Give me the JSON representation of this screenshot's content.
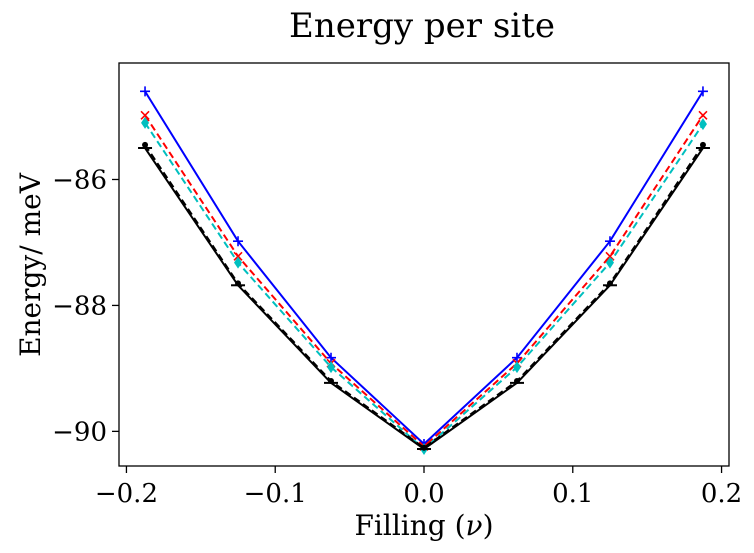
{
  "chart_data": {
    "type": "line",
    "title": "Energy per site",
    "xlabel": "Filling (",
    "xlabel_symbol": "ν",
    "xlabel_close": ")",
    "ylabel": "Energy/ meV",
    "xlim": [
      -0.205,
      0.205
    ],
    "ylim": [
      -90.55,
      -84.15
    ],
    "x_ticks": [
      -0.2,
      -0.1,
      0.0,
      0.1,
      0.2
    ],
    "x_tick_labels": [
      "−0.2",
      "−0.1",
      "0.0",
      "0.1",
      "0.2"
    ],
    "y_ticks": [
      -90,
      -88,
      -86
    ],
    "y_tick_labels": [
      "−90",
      "−88",
      "−86"
    ],
    "x": [
      -0.1875,
      -0.125,
      -0.0625,
      0.0,
      0.0625,
      0.125,
      0.1875
    ],
    "series": [
      {
        "name": "blue-solid-plus",
        "color": "#0000ff",
        "dash": "solid",
        "marker": "plus",
        "values": [
          -84.6,
          -86.98,
          -88.83,
          -90.2,
          -88.83,
          -86.98,
          -84.6
        ]
      },
      {
        "name": "red-dashed-x",
        "color": "#ff0000",
        "dash": "dashed",
        "marker": "x",
        "values": [
          -84.98,
          -87.22,
          -88.92,
          -90.24,
          -88.92,
          -87.22,
          -84.98
        ]
      },
      {
        "name": "cyan-dashed-diamond",
        "color": "#00bfbf",
        "dash": "dashed",
        "marker": "diamond",
        "values": [
          -85.1,
          -87.32,
          -88.98,
          -90.28,
          -88.98,
          -87.32,
          -85.12
        ]
      },
      {
        "name": "black-dashed-dot",
        "color": "#000000",
        "dash": "dashed",
        "marker": "dot",
        "values": [
          -85.45,
          -87.65,
          -89.2,
          -90.26,
          -89.2,
          -87.65,
          -85.45
        ]
      },
      {
        "name": "black-solid-hline",
        "color": "#000000",
        "dash": "solid",
        "marker": "hline",
        "values": [
          -85.5,
          -87.68,
          -89.23,
          -90.28,
          -89.23,
          -87.68,
          -85.5
        ]
      }
    ]
  }
}
